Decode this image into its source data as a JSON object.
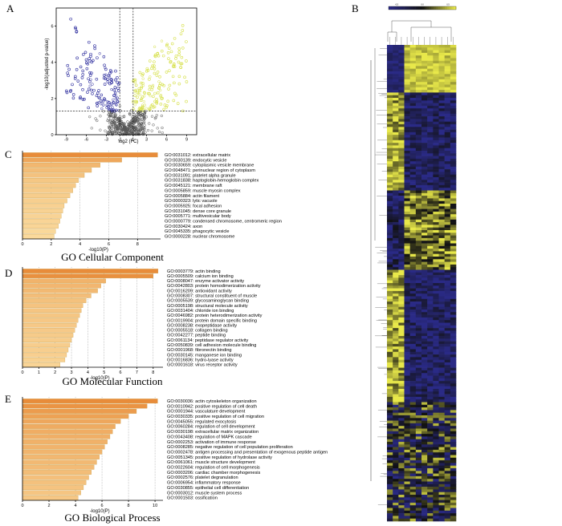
{
  "panels": {
    "a": "A",
    "b": "B",
    "c": "C",
    "d": "D",
    "e": "E"
  },
  "volcano": {
    "xlabel": "log2 (FC)",
    "ylabel": "-log10(adjusted p-value)",
    "xticks": [
      "-9",
      "-6",
      "-3",
      "-1",
      "1",
      "3",
      "6",
      "9"
    ],
    "yticks": [
      "0",
      "2",
      "4",
      "6"
    ],
    "colors": {
      "down": "#2e2e9e",
      "up": "#d6e04a",
      "ns": "#555555"
    }
  },
  "heatmap": {
    "legend_labels": [
      "-0.5",
      "0.0",
      "0.5"
    ],
    "colors": {
      "low": "#2a2a86",
      "mid": "#111111",
      "high": "#e8e84a"
    }
  },
  "chart_data": [
    {
      "type": "bar",
      "title": "GO Cellular Component",
      "xlabel": "-log10(P)",
      "xticks": [
        "0",
        "2",
        "4",
        "6",
        "8"
      ],
      "xlim": [
        0,
        9.6
      ],
      "categories": [
        "GO:0031012: extracellular matrix",
        "GO:0030139: endocytic vesicle",
        "GO:0030659: cytoplasmic vesicle membrane",
        "GO:0048471: perinuclear region of cytoplasm",
        "GO:0031091: platelet alpha granule",
        "GO:0031838: haptoglobin-hemoglobin complex",
        "GO:0045121: membrane raft",
        "GO:0005859: muscle myosin complex",
        "GO:0005884: actin filament",
        "GO:0000323: lytic vacuole",
        "GO:0005925: focal adhesion",
        "GO:0031045: dense core granule",
        "GO:0005771: multivesicular body",
        "GO:0000779: condensed chromosome, centromeric region",
        "GO:0030424: axon",
        "GO:0045335: phagocytic vesicle",
        "GO:0000228: nuclear chromosome"
      ],
      "values": [
        9.4,
        6.9,
        5.4,
        4.8,
        4.3,
        3.9,
        3.7,
        3.5,
        3.3,
        3.1,
        2.9,
        2.8,
        2.7,
        2.6,
        2.5,
        2.3,
        2.2
      ]
    },
    {
      "type": "bar",
      "title": "GO Molecular Function",
      "xlabel": "-log10(P)",
      "xticks": [
        "0",
        "1",
        "2",
        "3",
        "4",
        "5",
        "6",
        "7",
        "8"
      ],
      "xlim": [
        0,
        8.6
      ],
      "categories": [
        "GO:0003779: actin binding",
        "GO:0005509: calcium ion binding",
        "GO:0008047: enzyme activator activity",
        "GO:0042803: protein homodimerization activity",
        "GO:0016209: antioxidant activity",
        "GO:0008307: structural constituent of muscle",
        "GO:0005539: glycosaminoglycan binding",
        "GO:0005198: structural molecule activity",
        "GO:0031404: chloride ion binding",
        "GO:0046982: protein heterodimerization activity",
        "GO:0019904: protein domain specific binding",
        "GO:0008238: exopeptidase activity",
        "GO:0005518: collagen binding",
        "GO:0042277: peptide binding",
        "GO:0061134: peptidase regulator activity",
        "GO:0050839: cell adhesion molecule binding",
        "GO:0001968: fibronectin binding",
        "GO:0030145: manganese ion binding",
        "GO:0016836: hydro-lyase activity",
        "GO:0001618: virus receptor activity"
      ],
      "values": [
        8.3,
        8.0,
        5.1,
        4.8,
        4.6,
        4.2,
        3.9,
        3.7,
        3.6,
        3.5,
        3.4,
        3.3,
        3.2,
        3.1,
        3.0,
        2.9,
        2.8,
        2.7,
        2.6,
        2.3
      ]
    },
    {
      "type": "bar",
      "title": "GO Biological Process",
      "xlabel": "-log10(P)",
      "xticks": [
        "0",
        "2",
        "4",
        "6",
        "8",
        "10"
      ],
      "xlim": [
        0,
        10.6
      ],
      "categories": [
        "GO:0030036: actin cytoskeleton organization",
        "GO:0010942: positive regulation of cell death",
        "GO:0001944: vasculature development",
        "GO:0030335: positive regulation of cell migration",
        "GO:0045055: regulated exocytosis",
        "GO:0060284: regulation of cell development",
        "GO:0030198: extracellular matrix organization",
        "GO:0043408: regulation of MAPK cascade",
        "GO:0002253: activation of immune response",
        "GO:0008285: negative regulation of cell population proliferation",
        "GO:0002478: antigen processing and presentation of exogenous peptide antigen",
        "GO:0051345: positive regulation of hydrolase activity",
        "GO:0061061: muscle structure development",
        "GO:0022604: regulation of cell morphogenesis",
        "GO:0003206: cardiac chamber morphogenesis",
        "GO:0002576: platelet degranulation",
        "GO:0006954: inflammatory response",
        "GO:0030855: epithelial cell differentiation",
        "GO:0003012: muscle system process",
        "GO:0001503: ossification"
      ],
      "values": [
        10.2,
        9.4,
        8.6,
        8.0,
        7.4,
        7.0,
        6.8,
        6.6,
        6.4,
        6.2,
        6.0,
        5.8,
        5.6,
        5.4,
        5.2,
        5.0,
        4.8,
        4.6,
        4.4,
        4.2
      ]
    }
  ]
}
